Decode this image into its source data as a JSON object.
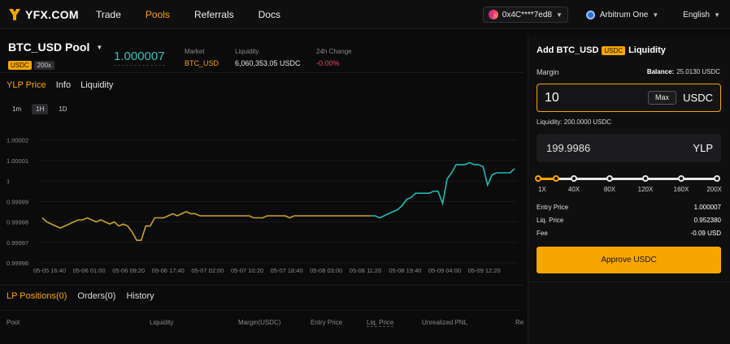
{
  "brand": {
    "logo_text": "YFX.COM",
    "accent": "#f7a600"
  },
  "nav": {
    "links": [
      "Trade",
      "Pools",
      "Referrals",
      "Docs"
    ],
    "active": "Pools"
  },
  "header_right": {
    "wallet": "0x4C****7ed8",
    "network": "Arbitrum One",
    "language": "English"
  },
  "pool": {
    "name": "BTC_USD Pool",
    "tag_token": "USDC",
    "tag_leverage": "200x",
    "price": "1.000007",
    "market_label": "Market",
    "market_value": "BTC_USD",
    "liquidity_label": "Liquidity",
    "liquidity_value": "6,060,353.05 USDC",
    "change_label": "24h Change",
    "change_value": "-0.00%"
  },
  "chart_tabs": [
    "YLP Price",
    "Info",
    "Liquidity"
  ],
  "timeframes": [
    "1m",
    "1H",
    "1D"
  ],
  "active_timeframe": "1H",
  "chart_data": {
    "type": "line",
    "ylim": [
      0.99996,
      1.000025
    ],
    "yticks": [
      "1.00002",
      "1.00001",
      "1",
      "0.99999",
      "0.99998",
      "0.99997",
      "0.99996"
    ],
    "xticks": [
      "05-05 16:40",
      "05-06 01:00",
      "05-06 09:20",
      "05-06 17:40",
      "05-07 02:00",
      "05-07 10:20",
      "05-07 18:40",
      "05-08 03:00",
      "05-08 11:20",
      "05-08 19:40",
      "05-09 04:00",
      "05-09 12:20"
    ],
    "colors": {
      "down": "#c9a227",
      "up": "#22b8b0"
    },
    "values": [
      0.999982,
      0.99998,
      0.999979,
      0.999978,
      0.999977,
      0.999978,
      0.999979,
      0.99998,
      0.999981,
      0.999981,
      0.999982,
      0.999981,
      0.99998,
      0.999981,
      0.99998,
      0.999979,
      0.99998,
      0.999978,
      0.999979,
      0.999978,
      0.999975,
      0.999971,
      0.999971,
      0.999978,
      0.999978,
      0.999982,
      0.999982,
      0.999982,
      0.999983,
      0.999984,
      0.999983,
      0.999984,
      0.999985,
      0.999984,
      0.999984,
      0.999983,
      0.999983,
      0.999983,
      0.999983,
      0.999983,
      0.999983,
      0.999983,
      0.999983,
      0.999983,
      0.999983,
      0.999983,
      0.999983,
      0.999982,
      0.999982,
      0.999982,
      0.999983,
      0.999983,
      0.999983,
      0.999983,
      0.999983,
      0.999982,
      0.999983,
      0.999983,
      0.999983,
      0.999983,
      0.999983,
      0.999983,
      0.999983,
      0.999983,
      0.999983,
      0.999983,
      0.999983,
      0.999983,
      0.999983,
      0.999983,
      0.999983,
      0.999983,
      0.999983,
      0.999983,
      0.999983,
      0.999982,
      0.999983,
      0.999984,
      0.999985,
      0.999986,
      0.999988,
      0.999991,
      0.999992,
      0.999994,
      0.999994,
      0.999994,
      0.999994,
      0.999995,
      0.999995,
      0.999989,
      1.000001,
      1.000004,
      1.000008,
      1.000008,
      1.000008,
      1.000009,
      1.000008,
      1.000008,
      1.000007,
      0.999998,
      1.000003,
      1.000004,
      1.000004,
      1.000004,
      1.000004,
      1.000006
    ],
    "up_from_index": 73
  },
  "positions": {
    "tabs": [
      "LP Positions(0)",
      "Orders(0)",
      "History"
    ],
    "columns": [
      "Pool",
      "Liquidity",
      "Margin(USDC)",
      "Entry Price",
      "Liq. Price",
      "Unrealized PNL",
      "Re"
    ]
  },
  "add_liquidity": {
    "title_prefix": "Add BTC_USD",
    "title_tag": "USDC",
    "title_suffix": "Liquidity",
    "margin_label": "Margin",
    "balance_label": "Balance:",
    "balance_value": "25.0130 USDC",
    "margin_value": "10",
    "max_label": "Max",
    "margin_unit": "USDC",
    "liquidity_text": "Liquidity: 200.0000 USDC",
    "ylp_value": "199.9986",
    "ylp_unit": "YLP",
    "leverage_marks": [
      "1X",
      "40X",
      "80X",
      "120X",
      "160X",
      "200X"
    ],
    "leverage_value": 0.1,
    "entry_price_label": "Entry Price",
    "entry_price_value": "1.000007",
    "liq_price_label": "Liq. Price",
    "liq_price_value": "0.952380",
    "fee_label": "Fee",
    "fee_value": "-0.09 USD",
    "approve_label": "Approve USDC"
  }
}
